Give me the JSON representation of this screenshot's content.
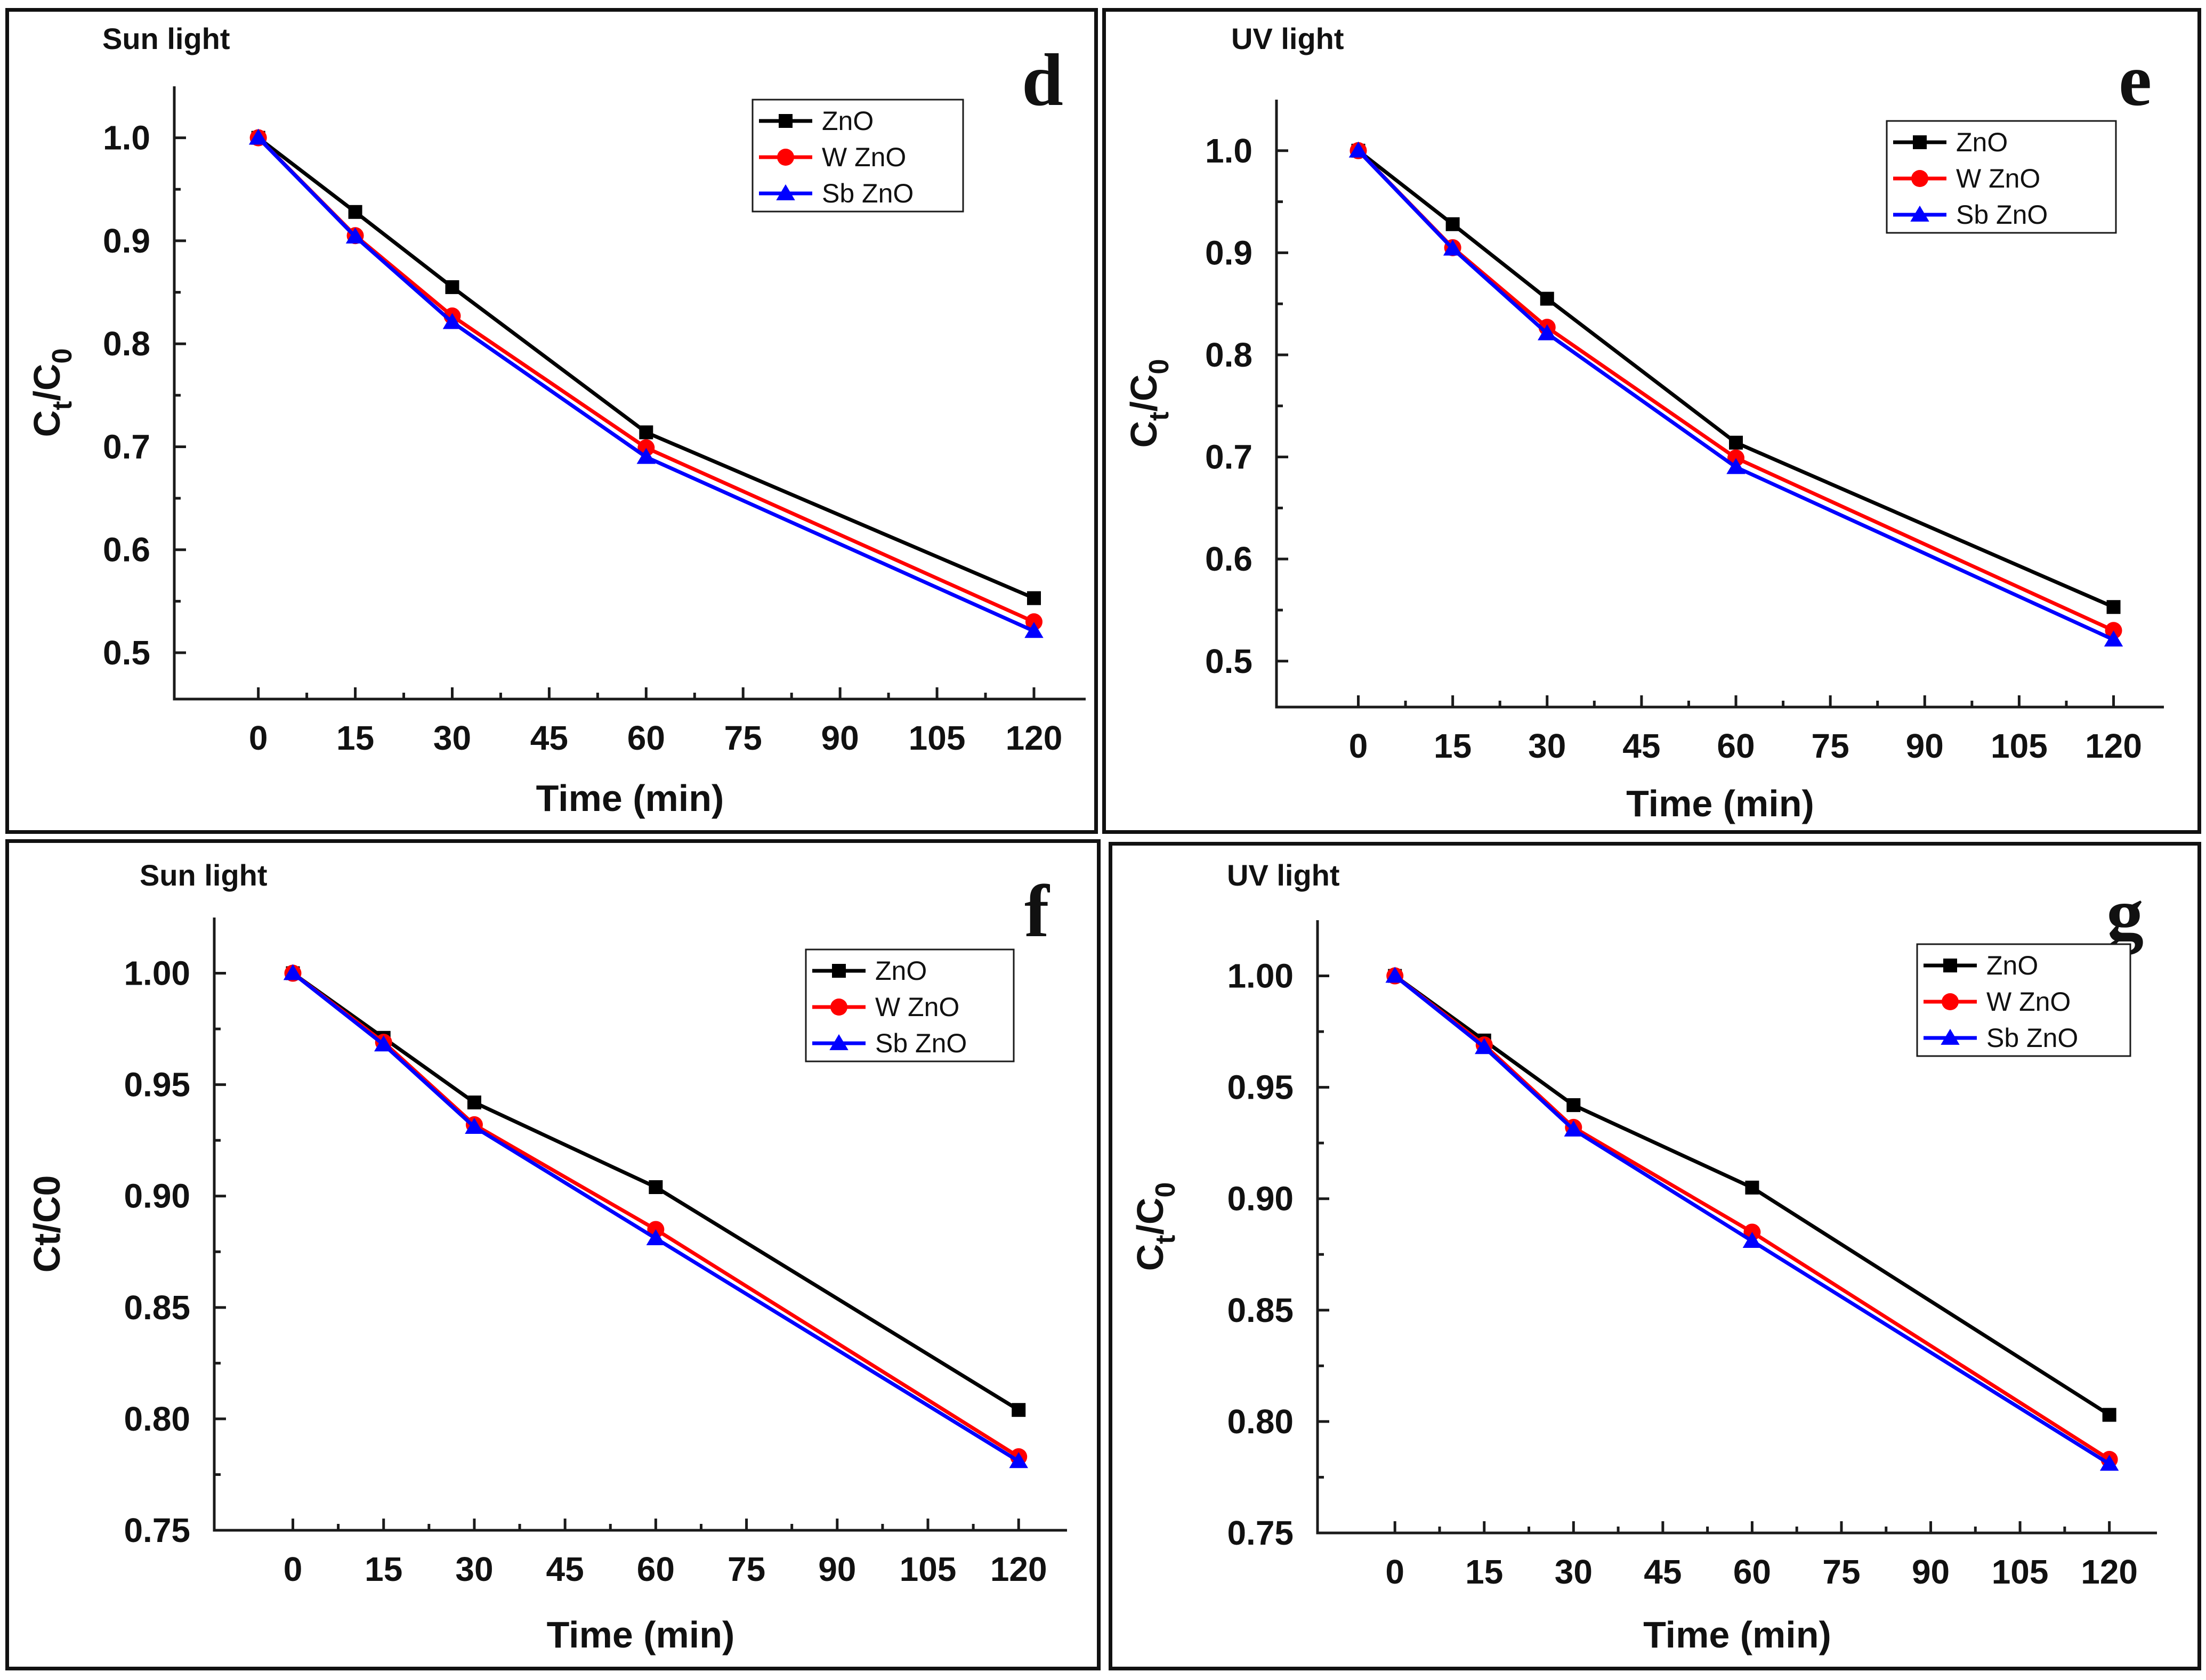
{
  "chart_data": [
    {
      "type": "line",
      "panel_letter": "d",
      "title": "Sun light",
      "xlabel": "Time (min)",
      "ylabel_main": "C",
      "ylabel_sub1": "t",
      "ylabel_mid": "/C",
      "ylabel_sub2": "0",
      "xlim": [
        -13,
        128
      ],
      "ylim": [
        0.455,
        1.05
      ],
      "xticks": [
        0,
        15,
        30,
        45,
        60,
        75,
        90,
        105,
        120
      ],
      "xtick_labels": [
        "0",
        "15",
        "30",
        "45",
        "60",
        "75",
        "90",
        "105",
        "120"
      ],
      "yticks": [
        0.5,
        0.6,
        0.7,
        0.8,
        0.9,
        1.0
      ],
      "ytick_labels": [
        "0.5",
        "0.6",
        "0.7",
        "0.8",
        "0.9",
        "1.0"
      ],
      "x": [
        0,
        15,
        30,
        60,
        120
      ],
      "series": [
        {
          "name": "ZnO",
          "color": "#000000",
          "marker": "square",
          "values": [
            1.0,
            0.928,
            0.855,
            0.714,
            0.553
          ]
        },
        {
          "name": "W ZnO",
          "color": "#ff0000",
          "marker": "circle",
          "values": [
            1.0,
            0.905,
            0.827,
            0.699,
            0.53
          ]
        },
        {
          "name": "Sb ZnO",
          "color": "#0000ff",
          "marker": "triangle",
          "values": [
            1.0,
            0.904,
            0.821,
            0.69,
            0.521
          ]
        }
      ]
    },
    {
      "type": "line",
      "panel_letter": "e",
      "title": "UV light",
      "xlabel": "Time (min)",
      "ylabel_main": "C",
      "ylabel_sub1": "t",
      "ylabel_mid": "/C",
      "ylabel_sub2": "0",
      "xlim": [
        -13,
        128
      ],
      "ylim": [
        0.455,
        1.05
      ],
      "xticks": [
        0,
        15,
        30,
        45,
        60,
        75,
        90,
        105,
        120
      ],
      "xtick_labels": [
        "0",
        "15",
        "30",
        "45",
        "60",
        "75",
        "90",
        "105",
        "120"
      ],
      "yticks": [
        0.5,
        0.6,
        0.7,
        0.8,
        0.9,
        1.0
      ],
      "ytick_labels": [
        "0.5",
        "0.6",
        "0.7",
        "0.8",
        "0.9",
        "1.0"
      ],
      "x": [
        0,
        15,
        30,
        60,
        120
      ],
      "series": [
        {
          "name": "ZnO",
          "color": "#000000",
          "marker": "square",
          "values": [
            1.0,
            0.928,
            0.855,
            0.714,
            0.553
          ]
        },
        {
          "name": "W ZnO",
          "color": "#ff0000",
          "marker": "circle",
          "values": [
            1.0,
            0.905,
            0.827,
            0.699,
            0.53
          ]
        },
        {
          "name": "Sb ZnO",
          "color": "#0000ff",
          "marker": "triangle",
          "values": [
            1.0,
            0.904,
            0.821,
            0.69,
            0.521
          ]
        }
      ]
    },
    {
      "type": "line",
      "panel_letter": "f",
      "title": "Sun light",
      "xlabel": "Time (min)",
      "ylabel_main": "Ct/C0",
      "ylabel_sub1": "",
      "ylabel_mid": "",
      "ylabel_sub2": "",
      "xlim": [
        -13,
        128
      ],
      "ylim": [
        0.75,
        1.025
      ],
      "xticks": [
        0,
        15,
        30,
        45,
        60,
        75,
        90,
        105,
        120
      ],
      "xtick_labels": [
        "0",
        "15",
        "30",
        "45",
        "60",
        "75",
        "90",
        "105",
        "120"
      ],
      "yticks": [
        0.75,
        0.8,
        0.85,
        0.9,
        0.95,
        1.0
      ],
      "ytick_labels": [
        "0.75",
        "0.80",
        "0.85",
        "0.90",
        "0.95",
        "1.00"
      ],
      "x": [
        0,
        15,
        30,
        60,
        120
      ],
      "series": [
        {
          "name": "ZnO",
          "color": "#000000",
          "marker": "square",
          "values": [
            1.0,
            0.971,
            0.942,
            0.904,
            0.804
          ]
        },
        {
          "name": "W ZnO",
          "color": "#ff0000",
          "marker": "circle",
          "values": [
            1.0,
            0.969,
            0.932,
            0.885,
            0.783
          ]
        },
        {
          "name": "Sb ZnO",
          "color": "#0000ff",
          "marker": "triangle",
          "values": [
            1.0,
            0.968,
            0.931,
            0.881,
            0.781
          ]
        }
      ]
    },
    {
      "type": "line",
      "panel_letter": "g",
      "title": "UV light",
      "xlabel": "Time (min)",
      "ylabel_main": "C",
      "ylabel_sub1": "t",
      "ylabel_mid": "/C",
      "ylabel_sub2": "0",
      "xlim": [
        -13,
        128
      ],
      "ylim": [
        0.75,
        1.025
      ],
      "xticks": [
        0,
        15,
        30,
        45,
        60,
        75,
        90,
        105,
        120
      ],
      "xtick_labels": [
        "0",
        "15",
        "30",
        "45",
        "60",
        "75",
        "90",
        "105",
        "120"
      ],
      "yticks": [
        0.75,
        0.8,
        0.85,
        0.9,
        0.95,
        1.0
      ],
      "ytick_labels": [
        "0.75",
        "0.80",
        "0.85",
        "0.90",
        "0.95",
        "1.00"
      ],
      "x": [
        0,
        15,
        30,
        60,
        120
      ],
      "series": [
        {
          "name": "ZnO",
          "color": "#000000",
          "marker": "square",
          "values": [
            1.0,
            0.971,
            0.942,
            0.905,
            0.803
          ]
        },
        {
          "name": "W ZnO",
          "color": "#ff0000",
          "marker": "circle",
          "values": [
            1.0,
            0.969,
            0.932,
            0.885,
            0.783
          ]
        },
        {
          "name": "Sb ZnO",
          "color": "#0000ff",
          "marker": "triangle",
          "values": [
            1.0,
            0.968,
            0.931,
            0.881,
            0.781
          ]
        }
      ]
    }
  ]
}
